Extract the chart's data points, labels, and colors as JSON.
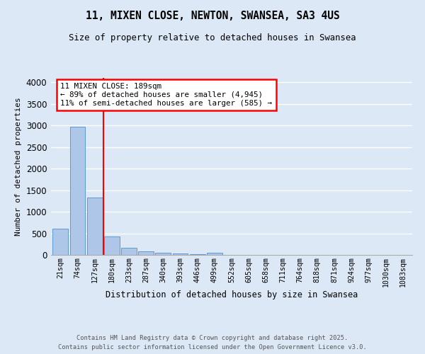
{
  "title_line1": "11, MIXEN CLOSE, NEWTON, SWANSEA, SA3 4US",
  "title_line2": "Size of property relative to detached houses in Swansea",
  "xlabel": "Distribution of detached houses by size in Swansea",
  "ylabel": "Number of detached properties",
  "bar_labels": [
    "21sqm",
    "74sqm",
    "127sqm",
    "180sqm",
    "233sqm",
    "287sqm",
    "340sqm",
    "393sqm",
    "446sqm",
    "499sqm",
    "552sqm",
    "605sqm",
    "658sqm",
    "711sqm",
    "764sqm",
    "818sqm",
    "871sqm",
    "924sqm",
    "977sqm",
    "1030sqm",
    "1083sqm"
  ],
  "bar_values": [
    600,
    2970,
    1330,
    420,
    160,
    75,
    50,
    30,
    20,
    50,
    0,
    0,
    0,
    0,
    0,
    0,
    0,
    0,
    0,
    0,
    0
  ],
  "bar_color": "#aec6e8",
  "bar_edgecolor": "#5b9bd5",
  "red_line_x": 3,
  "annotation_text": "11 MIXEN CLOSE: 189sqm\n← 89% of detached houses are smaller (4,945)\n11% of semi-detached houses are larger (585) →",
  "ylim": [
    0,
    4100
  ],
  "yticks": [
    0,
    500,
    1000,
    1500,
    2000,
    2500,
    3000,
    3500,
    4000
  ],
  "plot_bg_color": "#dce8f5",
  "fig_bg_color": "#dce8f5",
  "grid_color": "#ffffff",
  "footer_line1": "Contains HM Land Registry data © Crown copyright and database right 2025.",
  "footer_line2": "Contains public sector information licensed under the Open Government Licence v3.0."
}
